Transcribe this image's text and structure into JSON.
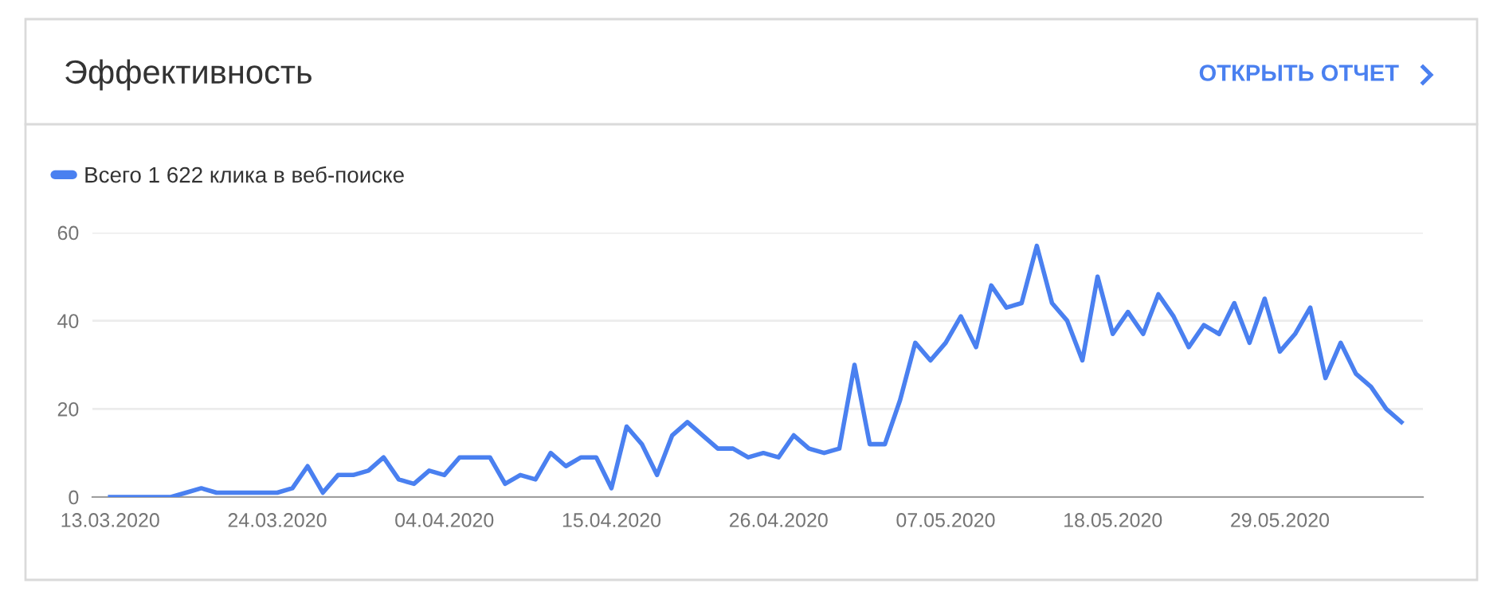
{
  "chart_data": {
    "type": "line",
    "title": "Эффективность",
    "annotations": [
      "ОТКРЫТЬ ОТЧЕТ"
    ],
    "x": [
      "2020-03-13",
      "2020-03-14",
      "2020-03-15",
      "2020-03-16",
      "2020-03-17",
      "2020-03-18",
      "2020-03-19",
      "2020-03-20",
      "2020-03-21",
      "2020-03-22",
      "2020-03-23",
      "2020-03-24",
      "2020-03-25",
      "2020-03-26",
      "2020-03-27",
      "2020-03-28",
      "2020-03-29",
      "2020-03-30",
      "2020-03-31",
      "2020-04-01",
      "2020-04-02",
      "2020-04-03",
      "2020-04-04",
      "2020-04-05",
      "2020-04-06",
      "2020-04-07",
      "2020-04-08",
      "2020-04-09",
      "2020-04-10",
      "2020-04-11",
      "2020-04-12",
      "2020-04-13",
      "2020-04-14",
      "2020-04-15",
      "2020-04-16",
      "2020-04-17",
      "2020-04-18",
      "2020-04-19",
      "2020-04-20",
      "2020-04-21",
      "2020-04-22",
      "2020-04-23",
      "2020-04-24",
      "2020-04-25",
      "2020-04-26",
      "2020-04-27",
      "2020-04-28",
      "2020-04-29",
      "2020-04-30",
      "2020-05-01",
      "2020-05-02",
      "2020-05-03",
      "2020-05-04",
      "2020-05-05",
      "2020-05-06",
      "2020-05-07",
      "2020-05-08",
      "2020-05-09",
      "2020-05-10",
      "2020-05-11",
      "2020-05-12",
      "2020-05-13",
      "2020-05-14",
      "2020-05-15",
      "2020-05-16",
      "2020-05-17",
      "2020-05-18",
      "2020-05-19",
      "2020-05-20",
      "2020-05-21",
      "2020-05-22",
      "2020-05-23",
      "2020-05-24",
      "2020-05-25",
      "2020-05-26",
      "2020-05-27",
      "2020-05-28",
      "2020-05-29",
      "2020-05-30",
      "2020-05-31",
      "2020-06-01",
      "2020-06-02",
      "2020-06-03",
      "2020-06-04",
      "2020-06-05",
      "2020-06-06"
    ],
    "series": [
      {
        "name": "Всего 1 622 клика в веб-поиске",
        "color": "#4a80f0",
        "values": [
          0,
          0,
          0,
          0,
          0,
          1,
          2,
          1,
          1,
          1,
          1,
          1,
          2,
          7,
          1,
          5,
          5,
          6,
          9,
          4,
          3,
          6,
          5,
          9,
          9,
          9,
          3,
          5,
          4,
          10,
          7,
          9,
          9,
          2,
          16,
          12,
          5,
          14,
          17,
          14,
          11,
          11,
          9,
          10,
          9,
          14,
          11,
          10,
          11,
          30,
          12,
          12,
          22,
          35,
          31,
          35,
          41,
          34,
          48,
          43,
          44,
          57,
          44,
          40,
          31,
          50,
          37,
          42,
          37,
          46,
          41,
          34,
          39,
          37,
          44,
          35,
          45,
          33,
          37,
          43,
          27,
          35,
          28,
          25,
          20,
          17
        ]
      }
    ],
    "xlim": [
      "2020-03-11T20:00",
      "2020-06-07T10:00"
    ],
    "xticks": [
      {
        "value": "2020-03-13",
        "label": "13.03.2020"
      },
      {
        "value": "2020-03-24",
        "label": "24.03.2020"
      },
      {
        "value": "2020-04-04",
        "label": "04.04.2020"
      },
      {
        "value": "2020-04-15",
        "label": "15.04.2020"
      },
      {
        "value": "2020-04-26",
        "label": "26.04.2020"
      },
      {
        "value": "2020-05-07",
        "label": "07.05.2020"
      },
      {
        "value": "2020-05-18",
        "label": "18.05.2020"
      },
      {
        "value": "2020-05-29",
        "label": "29.05.2020"
      }
    ],
    "ylim": [
      0,
      60
    ],
    "yticks": [
      0,
      20,
      40,
      60
    ],
    "grid": "y",
    "legend": "top left",
    "marker": "none",
    "line_style": "solid"
  }
}
